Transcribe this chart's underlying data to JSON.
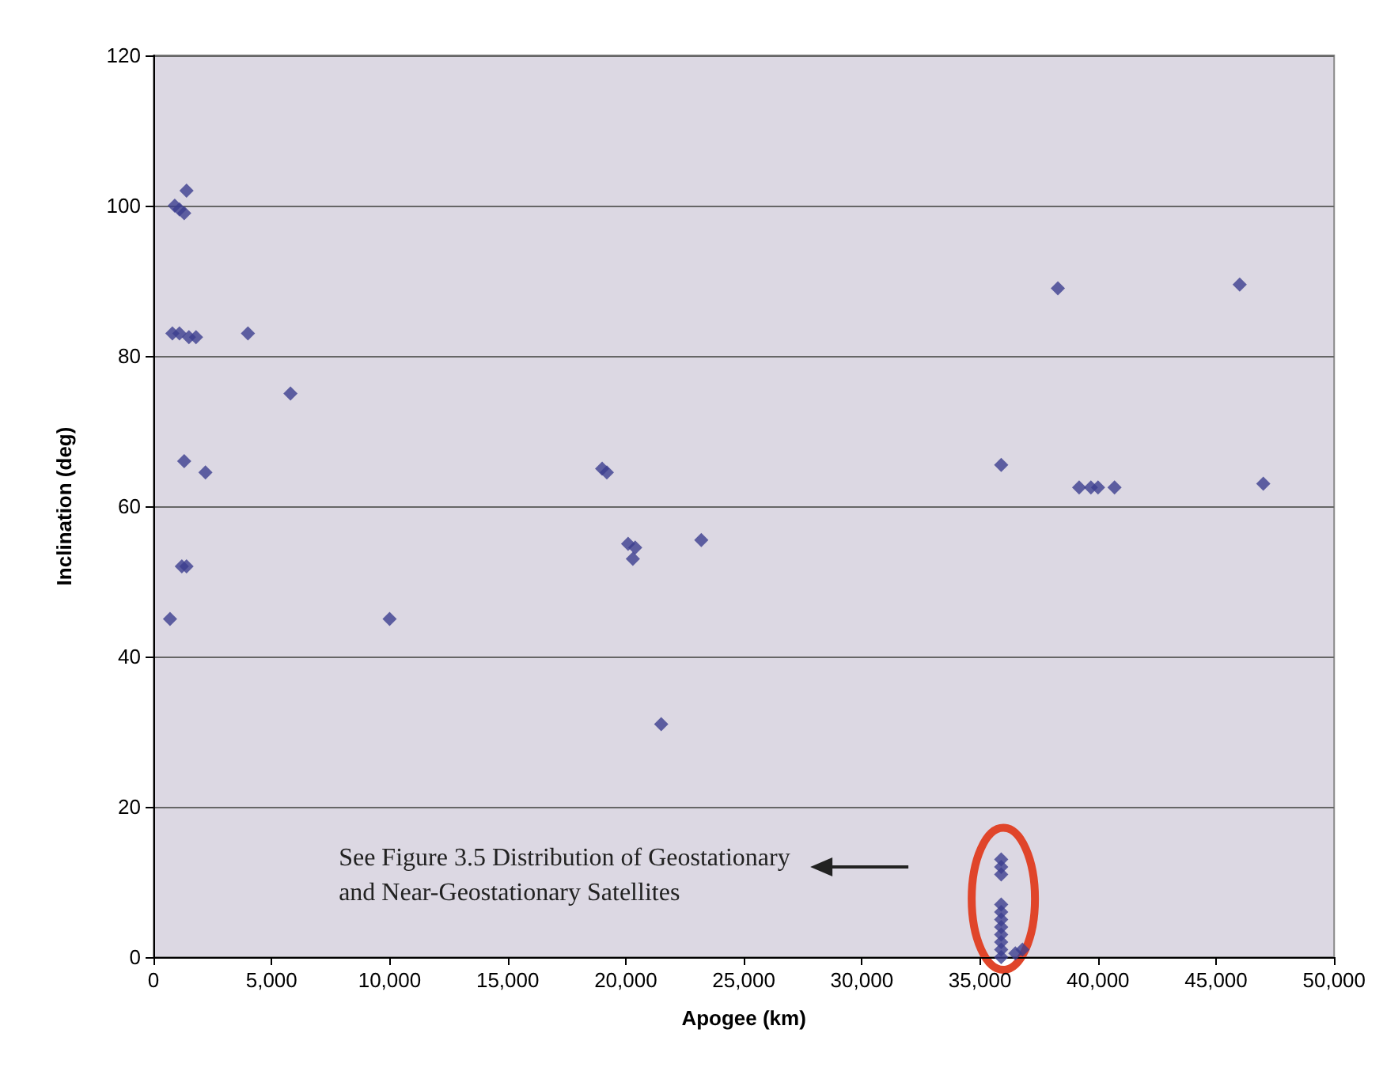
{
  "chart_data": {
    "type": "scatter",
    "xlabel": "Apogee (km)",
    "ylabel": "Inclination (deg)",
    "x": [
      1400,
      900,
      1100,
      1300,
      800,
      1100,
      1500,
      1800,
      4000,
      5800,
      1300,
      2200,
      1200,
      1400,
      700,
      10000,
      19000,
      19200,
      20100,
      20400,
      20300,
      23200,
      21500,
      35900,
      38300,
      46000,
      39200,
      39700,
      40000,
      40700,
      47000,
      35900,
      35900,
      35900,
      35900,
      35900,
      35900,
      35900,
      35900,
      35900,
      35900,
      35900,
      36800,
      36500
    ],
    "values": [
      102,
      100,
      99.5,
      99,
      83,
      83,
      82.5,
      82.5,
      83,
      75,
      66,
      64.5,
      52,
      52,
      45,
      45,
      65,
      64.5,
      55,
      54.5,
      53,
      55.5,
      31,
      65.5,
      89,
      89.5,
      62.5,
      62.5,
      62.5,
      62.5,
      63,
      13,
      12,
      11,
      7,
      6,
      5,
      4,
      3,
      2,
      1,
      0,
      1,
      0.5
    ],
    "color": "#3c3f8e",
    "marker": "diamond",
    "grid": "y",
    "xlim": [
      0,
      50000
    ],
    "xticks": [
      0,
      {
        "value": 5000,
        "label": "5,000"
      },
      {
        "value": 10000,
        "label": "10,000"
      },
      {
        "value": 15000,
        "label": "15,000"
      },
      {
        "value": 20000,
        "label": "20,000"
      },
      {
        "value": 25000,
        "label": "25,000"
      },
      {
        "value": 30000,
        "label": "30,000"
      },
      {
        "value": 35000,
        "label": "35,000"
      },
      {
        "value": 40000,
        "label": "40,000"
      },
      {
        "value": 45000,
        "label": "45,000"
      },
      {
        "value": 50000,
        "label": "50,000"
      }
    ],
    "ylim": [
      0,
      120
    ],
    "yticks": [
      0,
      20,
      40,
      60,
      80,
      100,
      120
    ],
    "annotations": [
      "See Figure 3.5 Distribution of Geostationary and Near-Geostationary Satellites"
    ]
  }
}
